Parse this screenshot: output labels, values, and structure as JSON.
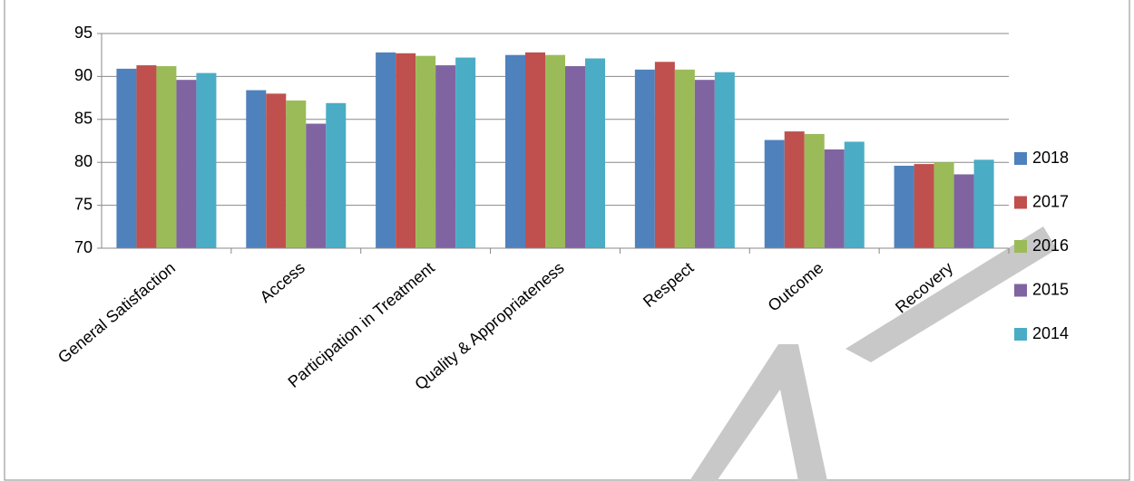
{
  "chart_data": {
    "type": "bar",
    "categories": [
      "General Satisfaction",
      "Access",
      "Participation in Treatment",
      "Quality & Appropriateness",
      "Respect",
      "Outcome",
      "Recovery"
    ],
    "series": [
      {
        "name": "2018",
        "color": "#4f81bd",
        "values": [
          90.9,
          88.4,
          92.8,
          92.5,
          90.8,
          82.6,
          79.6
        ]
      },
      {
        "name": "2017",
        "color": "#c0504d",
        "values": [
          91.3,
          88.0,
          92.7,
          92.8,
          91.7,
          83.6,
          79.8
        ]
      },
      {
        "name": "2016",
        "color": "#9bbb59",
        "values": [
          91.2,
          87.2,
          92.4,
          92.5,
          90.8,
          83.3,
          80.0
        ]
      },
      {
        "name": "2015",
        "color": "#8064a2",
        "values": [
          89.6,
          84.5,
          91.3,
          91.2,
          89.6,
          81.5,
          78.6
        ]
      },
      {
        "name": "2014",
        "color": "#4bacc6",
        "values": [
          90.4,
          86.9,
          92.2,
          92.1,
          90.5,
          82.4,
          80.3
        ]
      }
    ],
    "ylim": [
      70,
      95
    ],
    "yticks": [
      70,
      75,
      80,
      85,
      90,
      95
    ],
    "grid": true,
    "legend": "right"
  }
}
